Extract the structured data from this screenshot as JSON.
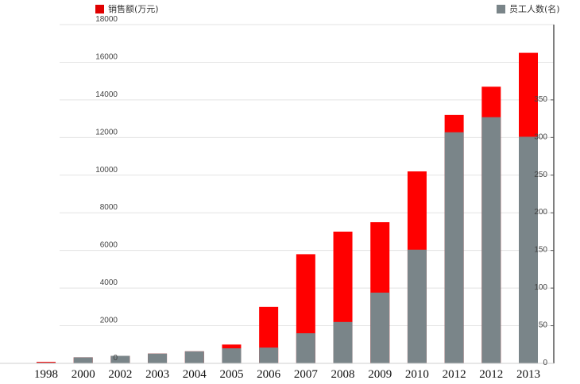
{
  "chart_data": {
    "type": "bar",
    "stacked": true,
    "categories": [
      "1998",
      "2000",
      "2002",
      "2003",
      "2004",
      "2005",
      "2006",
      "2007",
      "2008",
      "2009",
      "2010",
      "2012",
      "2012",
      "2013"
    ],
    "series": [
      {
        "name": "销售额(万元)",
        "color": "#ff0000",
        "axis": "left",
        "values": [
          80,
          120,
          200,
          400,
          400,
          1000,
          3000,
          5800,
          7000,
          7500,
          10200,
          13200,
          14700,
          16500
        ]
      },
      {
        "name": "员工人数(名)",
        "color": "#7a8589",
        "axis": "right",
        "values": [
          1,
          8,
          10,
          13,
          16,
          20,
          21,
          40,
          55,
          94,
          151,
          307,
          327,
          301
        ]
      }
    ],
    "y_left": {
      "min": 0,
      "max": 18000,
      "ticks": [
        0,
        2000,
        4000,
        6000,
        8000,
        10000,
        12000,
        14000,
        16000,
        18000
      ]
    },
    "y_right": {
      "min": 0,
      "max": 450,
      "ticks": [
        0,
        50,
        100,
        150,
        200,
        250,
        300,
        350
      ]
    },
    "grid": true,
    "legend_position": "top"
  }
}
